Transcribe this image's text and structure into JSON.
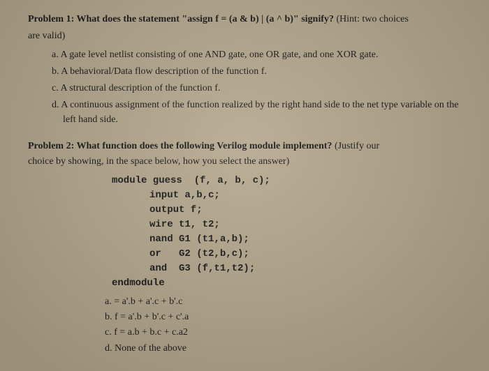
{
  "problem1": {
    "label": "Problem 1:",
    "question": " What does the statement \"assign f = (a & b) | (a ^ b)\" signify? ",
    "hint": "(Hint: two choices",
    "hint_line2": "are valid)",
    "choices": {
      "a": "a. A gate level netlist consisting of one AND gate, one OR gate, and one XOR gate.",
      "b": "b. A behavioral/Data flow description of the function f.",
      "c": "c. A structural description of the function f.",
      "d": "d. A continuous assignment of the function realized by the right hand side to the net type variable on the left hand side."
    }
  },
  "problem2": {
    "label": "Problem 2:",
    "question": " What function does the following Verilog module implement? ",
    "hint": "(Justify our",
    "subtext": "choice by showing, in the space below, how you select the answer)",
    "code": {
      "l1": "module guess  (f, a, b, c);",
      "l2": "input a,b,c;",
      "l3": "output f;",
      "l4": "wire t1, t2;",
      "l5": "nand G1 (t1,a,b);",
      "l6": "or   G2 (t2,b,c);",
      "l7": "and  G3 (f,t1,t2);",
      "l8": "endmodule"
    },
    "answers": {
      "a": "a. = a'.b + a'.c + b'.c",
      "b": "b. f = a'.b + b'.c + c'.a",
      "c": "c. f = a.b + b.c + c.a2",
      "d": "d. None of the above"
    }
  }
}
